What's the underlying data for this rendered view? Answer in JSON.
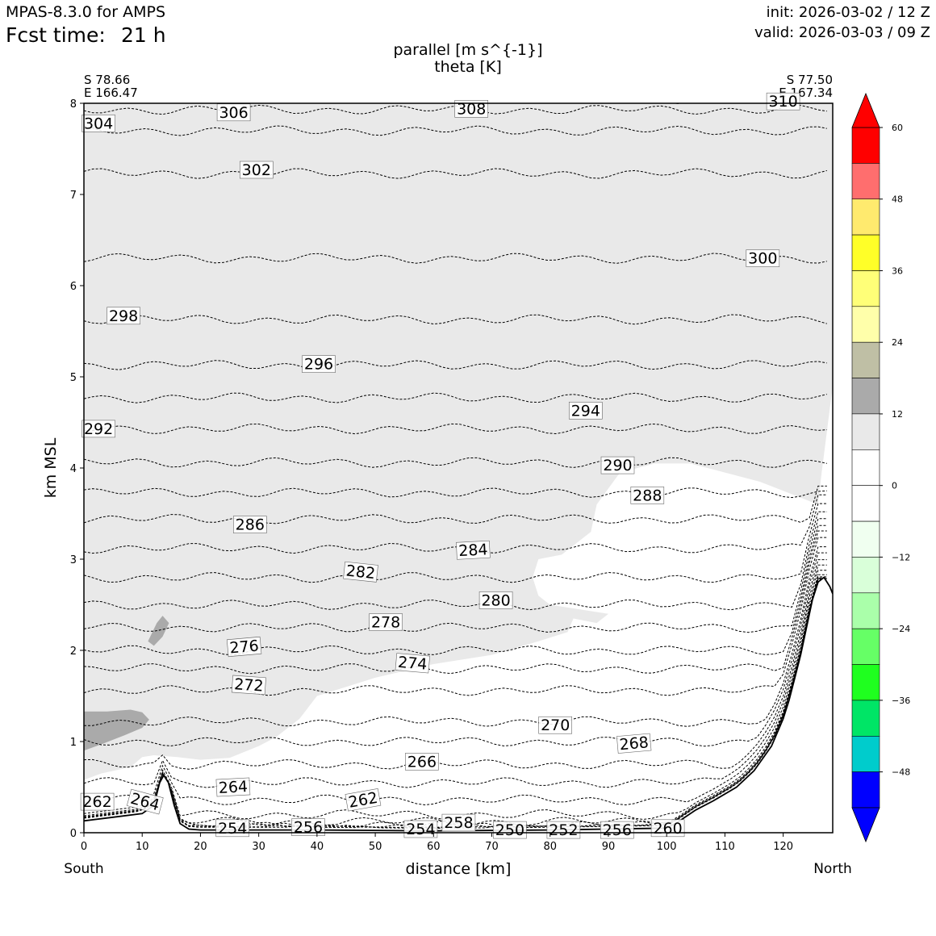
{
  "header": {
    "model": "MPAS-8.3.0 for AMPS",
    "fcst_label": "Fcst time:",
    "fcst_value": "21 h",
    "init": "init: 2026-03-02 / 12 Z",
    "valid": "valid: 2026-03-03 / 09 Z"
  },
  "chart_data": {
    "type": "cross-section",
    "title": "parallel [m s^{-1}]",
    "subtitle": "theta [K]",
    "xlabel": "distance [km]",
    "ylabel": "km MSL",
    "xlim": [
      0,
      128.5
    ],
    "ylim": [
      0,
      8
    ],
    "xticks": [
      0,
      10,
      20,
      30,
      40,
      50,
      60,
      70,
      80,
      90,
      100,
      110,
      120
    ],
    "yticks": [
      0,
      1,
      2,
      3,
      4,
      5,
      6,
      7,
      8
    ],
    "start_point": {
      "lat": "S 78.66",
      "lon": "E 166.47",
      "direction": "South"
    },
    "end_point": {
      "lat": "S 77.50",
      "lon": "E 167.34",
      "direction": "North"
    },
    "colorbar": {
      "label_values": [
        60,
        48,
        36,
        24,
        12,
        0,
        -12,
        -24,
        -36,
        -48
      ],
      "label_texts": [
        "60",
        "48",
        "36",
        "24",
        "12",
        "0",
        "−12",
        "−24",
        "−36",
        "−48"
      ],
      "bins": [
        {
          "lo": 54,
          "hi": 60,
          "color": "#ff0000"
        },
        {
          "lo": 48,
          "hi": 54,
          "color": "#ff6e6e"
        },
        {
          "lo": 42,
          "hi": 48,
          "color": "#ffea6e"
        },
        {
          "lo": 36,
          "hi": 42,
          "color": "#ffff28"
        },
        {
          "lo": 30,
          "hi": 36,
          "color": "#ffff78"
        },
        {
          "lo": 24,
          "hi": 30,
          "color": "#ffffaa"
        },
        {
          "lo": 18,
          "hi": 24,
          "color": "#bfbfa5"
        },
        {
          "lo": 12,
          "hi": 18,
          "color": "#aaaaaa"
        },
        {
          "lo": 6,
          "hi": 12,
          "color": "#e9e9e9"
        },
        {
          "lo": 0,
          "hi": 6,
          "color": "#ffffff"
        },
        {
          "lo": -6,
          "hi": 0,
          "color": "#ffffff"
        },
        {
          "lo": -12,
          "hi": -6,
          "color": "#f0fff0"
        },
        {
          "lo": -18,
          "hi": -12,
          "color": "#d9ffd9"
        },
        {
          "lo": -24,
          "hi": -18,
          "color": "#aaffaa"
        },
        {
          "lo": -30,
          "hi": -24,
          "color": "#66ff66"
        },
        {
          "lo": -36,
          "hi": -30,
          "color": "#1fff1f"
        },
        {
          "lo": -42,
          "hi": -36,
          "color": "#00e566"
        },
        {
          "lo": -48,
          "hi": -42,
          "color": "#00cccc"
        },
        {
          "lo": -54,
          "hi": -48,
          "color": "#0000ff"
        }
      ],
      "over_color": "#ff0000",
      "under_color": "#0000ff"
    },
    "shading": {
      "light_gray_region": [
        [
          0,
          0.58
        ],
        [
          3,
          0.65
        ],
        [
          8,
          0.72
        ],
        [
          10,
          0.83
        ],
        [
          12,
          0.85
        ],
        [
          16,
          0.83
        ],
        [
          20,
          0.8
        ],
        [
          25,
          0.82
        ],
        [
          30,
          0.95
        ],
        [
          33,
          1.05
        ],
        [
          37,
          1.25
        ],
        [
          40,
          1.5
        ],
        [
          45,
          1.6
        ],
        [
          50,
          1.7
        ],
        [
          60,
          1.85
        ],
        [
          70,
          1.95
        ],
        [
          78,
          2.1
        ],
        [
          83,
          2.2
        ],
        [
          84,
          2.35
        ],
        [
          88,
          2.3
        ],
        [
          90,
          2.4
        ],
        [
          85,
          2.45
        ],
        [
          80,
          2.5
        ],
        [
          78,
          2.6
        ],
        [
          77,
          2.8
        ],
        [
          78,
          3.0
        ],
        [
          82,
          3.05
        ],
        [
          87,
          3.3
        ],
        [
          88,
          3.6
        ],
        [
          92,
          3.95
        ],
        [
          98,
          4.05
        ],
        [
          104,
          4.05
        ],
        [
          110,
          3.95
        ],
        [
          116,
          3.85
        ],
        [
          120,
          3.75
        ],
        [
          126,
          3.6
        ],
        [
          126.5,
          3.9
        ],
        [
          128.5,
          4.9
        ],
        [
          128.5,
          8
        ],
        [
          0,
          8
        ]
      ],
      "medium_gray_regions": [
        [
          [
            0,
            1.33
          ],
          [
            4,
            1.33
          ],
          [
            8,
            1.35
          ],
          [
            10,
            1.32
          ],
          [
            11.2,
            1.24
          ],
          [
            10,
            1.15
          ],
          [
            7,
            1.07
          ],
          [
            3,
            0.97
          ],
          [
            0,
            0.9
          ]
        ],
        [
          [
            11,
            2.1
          ],
          [
            12.5,
            2.3
          ],
          [
            13.5,
            2.38
          ],
          [
            14.6,
            2.3
          ],
          [
            13.5,
            2.15
          ],
          [
            12,
            2.05
          ]
        ]
      ]
    },
    "terrain_profile": [
      [
        0,
        0.13
      ],
      [
        5,
        0.17
      ],
      [
        10,
        0.21
      ],
      [
        12,
        0.3
      ],
      [
        13,
        0.55
      ],
      [
        13.7,
        0.63
      ],
      [
        14.5,
        0.55
      ],
      [
        15.5,
        0.3
      ],
      [
        16.5,
        0.1
      ],
      [
        18,
        0.04
      ],
      [
        20,
        0.03
      ],
      [
        40,
        0.03
      ],
      [
        60,
        0.02
      ],
      [
        80,
        0.03
      ],
      [
        100,
        0.05
      ],
      [
        102,
        0.12
      ],
      [
        105,
        0.25
      ],
      [
        108,
        0.35
      ],
      [
        112,
        0.5
      ],
      [
        115,
        0.68
      ],
      [
        118,
        0.95
      ],
      [
        120,
        1.25
      ],
      [
        121,
        1.45
      ],
      [
        122,
        1.7
      ],
      [
        123,
        1.95
      ],
      [
        124,
        2.25
      ],
      [
        125,
        2.55
      ],
      [
        126,
        2.75
      ],
      [
        127,
        2.8
      ],
      [
        128,
        2.7
      ],
      [
        128.5,
        2.62
      ]
    ],
    "theta_contours": [
      {
        "level": 250,
        "y": 0.03
      },
      {
        "level": 252,
        "y": 0.05
      },
      {
        "level": 254,
        "y": 0.06
      },
      {
        "level": 256,
        "y": 0.08
      },
      {
        "level": 258,
        "y": 0.12
      },
      {
        "level": 260,
        "y": 0.2
      },
      {
        "level": 262,
        "y": 0.36
      },
      {
        "level": 264,
        "y": 0.55
      },
      {
        "level": 266,
        "y": 0.75
      },
      {
        "level": 268,
        "y": 1.0
      },
      {
        "level": 270,
        "y": 1.22
      },
      {
        "level": 272,
        "y": 1.56
      },
      {
        "level": 274,
        "y": 1.8
      },
      {
        "level": 276,
        "y": 2.0
      },
      {
        "level": 278,
        "y": 2.25
      },
      {
        "level": 280,
        "y": 2.5
      },
      {
        "level": 282,
        "y": 2.8
      },
      {
        "level": 284,
        "y": 3.12
      },
      {
        "level": 286,
        "y": 3.44
      },
      {
        "level": 288,
        "y": 3.73
      },
      {
        "level": 290,
        "y": 4.06
      },
      {
        "level": 292,
        "y": 4.43
      },
      {
        "level": 294,
        "y": 4.77
      },
      {
        "level": 296,
        "y": 5.13
      },
      {
        "level": 298,
        "y": 5.63
      },
      {
        "level": 300,
        "y": 6.3
      },
      {
        "level": 302,
        "y": 7.23
      },
      {
        "level": 304,
        "y": 7.7
      },
      {
        "level": 306,
        "y": 7.93
      },
      {
        "level": 308,
        "y": 8.05
      }
    ],
    "contour_labels": [
      {
        "text": "310",
        "x": 120,
        "y": 8.02,
        "angle": 0
      },
      {
        "text": "308",
        "x": 66.5,
        "y": 7.94,
        "angle": 0
      },
      {
        "text": "306",
        "x": 25.7,
        "y": 7.9,
        "angle": 0
      },
      {
        "text": "304",
        "x": 2.5,
        "y": 7.78,
        "angle": 0
      },
      {
        "text": "302",
        "x": 29.6,
        "y": 7.27,
        "angle": 0
      },
      {
        "text": "300",
        "x": 116.5,
        "y": 6.3,
        "angle": 0
      },
      {
        "text": "298",
        "x": 6.8,
        "y": 5.67,
        "angle": 0
      },
      {
        "text": "296",
        "x": 40.3,
        "y": 5.14,
        "angle": 0
      },
      {
        "text": "294",
        "x": 86.1,
        "y": 4.63,
        "angle": 0
      },
      {
        "text": "292",
        "x": 2.5,
        "y": 4.43,
        "angle": 0
      },
      {
        "text": "290",
        "x": 91.6,
        "y": 4.03,
        "angle": 0
      },
      {
        "text": "288",
        "x": 96.7,
        "y": 3.7,
        "angle": 0
      },
      {
        "text": "286",
        "x": 28.5,
        "y": 3.38,
        "angle": 0
      },
      {
        "text": "284",
        "x": 66.8,
        "y": 3.1,
        "angle": -3
      },
      {
        "text": "282",
        "x": 47.5,
        "y": 2.86,
        "angle": 6
      },
      {
        "text": "280",
        "x": 70.7,
        "y": 2.55,
        "angle": 0
      },
      {
        "text": "278",
        "x": 51.8,
        "y": 2.31,
        "angle": 0
      },
      {
        "text": "276",
        "x": 27.5,
        "y": 2.04,
        "angle": -5
      },
      {
        "text": "274",
        "x": 56.4,
        "y": 1.86,
        "angle": 5
      },
      {
        "text": "272",
        "x": 28.3,
        "y": 1.62,
        "angle": 4
      },
      {
        "text": "270",
        "x": 80.9,
        "y": 1.18,
        "angle": 0
      },
      {
        "text": "268",
        "x": 94.4,
        "y": 0.98,
        "angle": -5
      },
      {
        "text": "266",
        "x": 58.0,
        "y": 0.78,
        "angle": 0
      },
      {
        "text": "264",
        "x": 25.6,
        "y": 0.5,
        "angle": -3
      },
      {
        "text": "264",
        "x": 10.5,
        "y": 0.34,
        "angle": 15
      },
      {
        "text": "262",
        "x": 2.3,
        "y": 0.34,
        "angle": 0
      },
      {
        "text": "262",
        "x": 47.9,
        "y": 0.36,
        "angle": -10
      },
      {
        "text": "258",
        "x": 64.3,
        "y": 0.11,
        "angle": 0
      },
      {
        "text": "256",
        "x": 38.5,
        "y": 0.06,
        "angle": 0
      },
      {
        "text": "254",
        "x": 25.5,
        "y": 0.05,
        "angle": 0
      },
      {
        "text": "254",
        "x": 57.8,
        "y": 0.04,
        "angle": 0
      },
      {
        "text": "250",
        "x": 73.1,
        "y": 0.03,
        "angle": 0
      },
      {
        "text": "252",
        "x": 82.3,
        "y": 0.03,
        "angle": 0
      },
      {
        "text": "256",
        "x": 91.5,
        "y": 0.03,
        "angle": 0
      },
      {
        "text": "260",
        "x": 100.2,
        "y": 0.05,
        "angle": 0
      }
    ]
  }
}
